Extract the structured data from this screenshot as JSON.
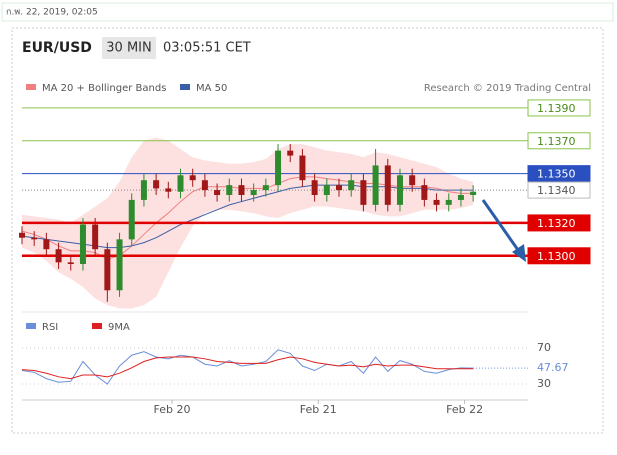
{
  "timestamp": "ก.พ. 22, 2019, 02:05",
  "chart_data": {
    "type": "candlestick",
    "symbol": "EUR/USD",
    "interval": "30 MIN",
    "time": "03:05:51 CET",
    "credit": "Research © 2019 Trading Central",
    "up_color": "#2e8b2e",
    "down_color": "#a01818",
    "xlim": [
      0,
      83
    ],
    "xticks": [
      {
        "value": 24.6,
        "label": "Feb 20"
      },
      {
        "value": 48.6,
        "label": "Feb 21"
      },
      {
        "value": 72.6,
        "label": "Feb 22"
      }
    ],
    "ylim": [
      1.1267,
      1.1407
    ],
    "x": [
      0,
      2,
      4,
      6,
      8,
      10,
      12,
      14,
      16,
      18,
      20,
      22,
      24,
      26,
      28,
      30,
      32,
      34,
      36,
      38,
      40,
      42,
      44,
      46,
      48,
      50,
      52,
      54,
      56,
      58,
      60,
      62,
      64,
      66,
      68,
      70,
      72,
      74
    ],
    "open": [
      1.1314,
      1.1311,
      1.131,
      1.1304,
      1.1296,
      1.1295,
      1.1319,
      1.1304,
      1.1279,
      1.131,
      1.1334,
      1.1346,
      1.1341,
      1.1339,
      1.1349,
      1.1346,
      1.134,
      1.1337,
      1.1343,
      1.1337,
      1.134,
      1.1343,
      1.1364,
      1.1361,
      1.1346,
      1.1337,
      1.1343,
      1.134,
      1.1346,
      1.1331,
      1.1355,
      1.1331,
      1.1349,
      1.1343,
      1.1334,
      1.1331,
      1.1334,
      1.1337
    ],
    "high": [
      1.1318,
      1.1315,
      1.1314,
      1.1308,
      1.13,
      1.1323,
      1.1323,
      1.1308,
      1.1314,
      1.1338,
      1.135,
      1.135,
      1.1345,
      1.1353,
      1.1353,
      1.135,
      1.1344,
      1.1347,
      1.1347,
      1.1344,
      1.1347,
      1.1368,
      1.1368,
      1.1365,
      1.135,
      1.1347,
      1.1347,
      1.135,
      1.135,
      1.1365,
      1.1359,
      1.1353,
      1.1353,
      1.1347,
      1.1338,
      1.1338,
      1.1341,
      1.1343
    ],
    "low": [
      1.1307,
      1.1306,
      1.13,
      1.1292,
      1.1291,
      1.1291,
      1.13,
      1.1272,
      1.1275,
      1.1306,
      1.133,
      1.1337,
      1.1335,
      1.1335,
      1.1342,
      1.1336,
      1.1333,
      1.1333,
      1.1333,
      1.1333,
      1.1336,
      1.1339,
      1.1357,
      1.1342,
      1.1333,
      1.1333,
      1.1336,
      1.1336,
      1.1327,
      1.1327,
      1.1327,
      1.1327,
      1.1339,
      1.133,
      1.1327,
      1.1327,
      1.133,
      1.1333
    ],
    "close": [
      1.1311,
      1.131,
      1.1304,
      1.1296,
      1.1295,
      1.1319,
      1.1304,
      1.1279,
      1.131,
      1.1334,
      1.1346,
      1.1341,
      1.1339,
      1.1349,
      1.1346,
      1.134,
      1.1337,
      1.1343,
      1.1337,
      1.134,
      1.1343,
      1.1364,
      1.1361,
      1.1346,
      1.1337,
      1.1343,
      1.134,
      1.1346,
      1.1331,
      1.1355,
      1.1331,
      1.1349,
      1.1343,
      1.1334,
      1.1331,
      1.1334,
      1.1337,
      1.1339
    ],
    "bollinger": {
      "name": "MA 20 + Bollinger Bands",
      "color": "#f08080",
      "band_color": "#fde0e0",
      "values": [
        1.1315,
        1.1313,
        1.131,
        1.1306,
        1.1303,
        1.1303,
        1.1302,
        1.1298,
        1.13,
        1.1306,
        1.1313,
        1.132,
        1.1326,
        1.1333,
        1.1339,
        1.1342,
        1.1342,
        1.1342,
        1.1341,
        1.1341,
        1.1341,
        1.1344,
        1.1347,
        1.1348,
        1.1348,
        1.1347,
        1.1346,
        1.1345,
        1.1344,
        1.1344,
        1.1343,
        1.1342,
        1.1342,
        1.1342,
        1.1341,
        1.1339,
        1.1338,
        1.1338
      ],
      "upper": [
        1.1325,
        1.1324,
        1.1323,
        1.1322,
        1.132,
        1.1325,
        1.133,
        1.1335,
        1.1345,
        1.136,
        1.137,
        1.1372,
        1.137,
        1.1365,
        1.136,
        1.1358,
        1.1357,
        1.1356,
        1.1356,
        1.1357,
        1.1359,
        1.1365,
        1.1368,
        1.1368,
        1.1366,
        1.1364,
        1.1363,
        1.1362,
        1.136,
        1.1363,
        1.1362,
        1.136,
        1.1358,
        1.1356,
        1.1354,
        1.135,
        1.1347,
        1.1345
      ],
      "lower": [
        1.1305,
        1.1302,
        1.1297,
        1.129,
        1.1286,
        1.1281,
        1.1274,
        1.127,
        1.1268,
        1.1268,
        1.127,
        1.1275,
        1.129,
        1.1305,
        1.1318,
        1.1326,
        1.1328,
        1.1328,
        1.1327,
        1.1326,
        1.1324,
        1.1323,
        1.1326,
        1.1328,
        1.133,
        1.133,
        1.1329,
        1.1328,
        1.1327,
        1.1325,
        1.1324,
        1.1324,
        1.1326,
        1.1328,
        1.1328,
        1.1328,
        1.1329,
        1.1331
      ]
    },
    "ma50": {
      "name": "MA 50",
      "color": "#3a5fa8",
      "values": [
        1.1312,
        1.1311,
        1.131,
        1.1309,
        1.1308,
        1.1307,
        1.1306,
        1.1305,
        1.1305,
        1.1306,
        1.1308,
        1.1311,
        1.1315,
        1.1319,
        1.1322,
        1.1325,
        1.1328,
        1.1331,
        1.1333,
        1.1335,
        1.1337,
        1.1339,
        1.1341,
        1.1342,
        1.1343,
        1.1343,
        1.1343,
        1.1343,
        1.1342,
        1.1342,
        1.1342,
        1.1341,
        1.1341,
        1.1341,
        1.134,
        1.134,
        1.134,
        1.134
      ]
    },
    "levels": [
      {
        "value": 1.139,
        "label": "1.1390",
        "color": "#8bc34a",
        "thick": false,
        "filled": false
      },
      {
        "value": 1.137,
        "label": "1.1370",
        "color": "#8bc34a",
        "thick": false,
        "filled": false
      },
      {
        "value": 1.135,
        "label": "1.1350",
        "color": "#2a4fc0",
        "thick": false,
        "filled": true
      },
      {
        "value": 1.132,
        "label": "1.1320",
        "color": "#e00000",
        "thick": true,
        "filled": true
      },
      {
        "value": 1.13,
        "label": "1.1300",
        "color": "#e00000",
        "thick": true,
        "filled": true
      }
    ],
    "last_price": {
      "value": 1.134,
      "label": "1.1340"
    },
    "rsi": {
      "ylim": [
        17.8,
        78.9
      ],
      "yticks": [
        70,
        30
      ],
      "last": 47.67,
      "series": [
        {
          "name": "RSI",
          "color": "#6a8fd8",
          "values": [
            45,
            43,
            36,
            32,
            33,
            55,
            40,
            30,
            50,
            62,
            66,
            60,
            58,
            62,
            60,
            52,
            50,
            56,
            50,
            52,
            55,
            68,
            64,
            50,
            45,
            52,
            50,
            55,
            42,
            60,
            44,
            56,
            52,
            44,
            42,
            46,
            48,
            47.67
          ]
        },
        {
          "name": "9MA",
          "color": "#e02020",
          "values": [
            46,
            45,
            42,
            38,
            36,
            40,
            40,
            38,
            42,
            48,
            55,
            59,
            60,
            60,
            60,
            58,
            55,
            54,
            53,
            53,
            53,
            57,
            60,
            58,
            54,
            52,
            50,
            51,
            49,
            52,
            50,
            51,
            51,
            49,
            47,
            47,
            47,
            47
          ]
        }
      ]
    }
  }
}
